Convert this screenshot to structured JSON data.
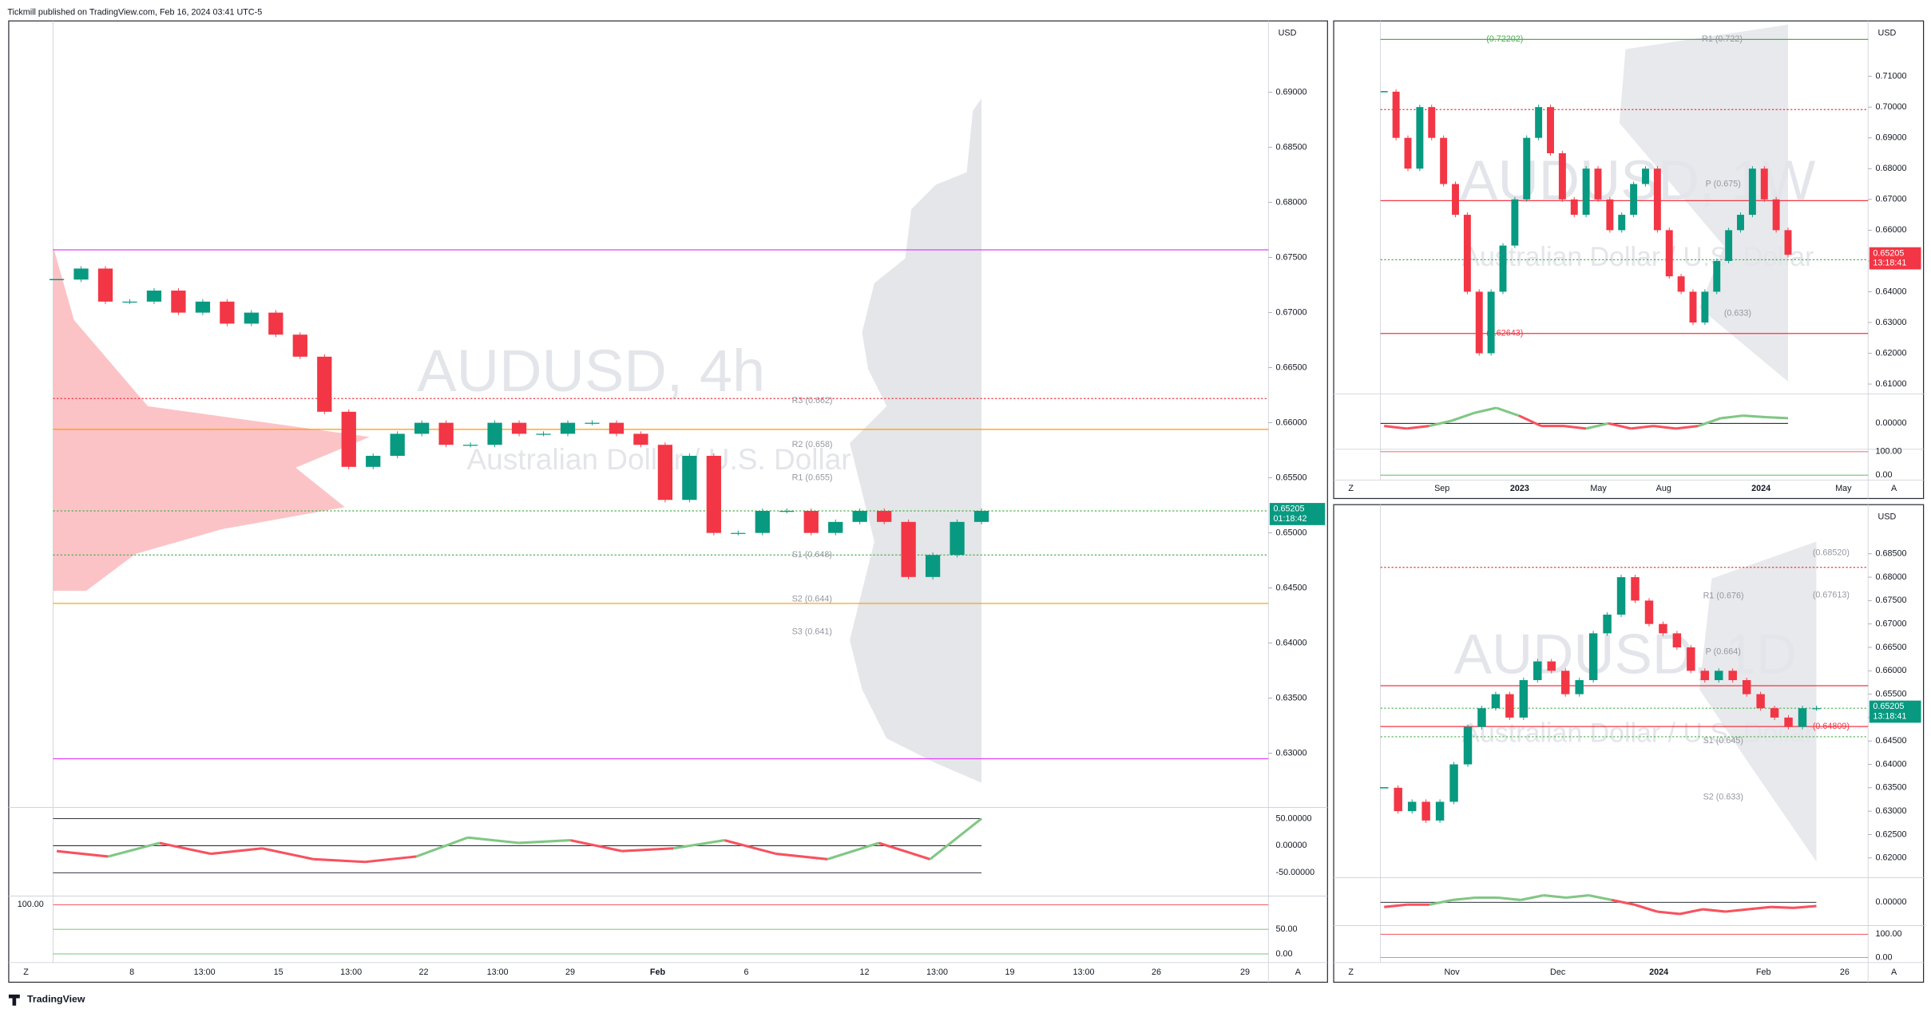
{
  "header": {
    "text": "Tickmill published on TradingView.com, Feb 16, 2024 03:41 UTC-5"
  },
  "footer": {
    "brand": "TradingView"
  },
  "chart_data": [
    {
      "type": "candlestick",
      "title": "AUDUSD, 4h",
      "subtitle": "Australian Dollar / U.S. Dollar",
      "currency": "USD",
      "x_labels": [
        "8",
        "13:00",
        "15",
        "13:00",
        "22",
        "13:00",
        "29",
        "Feb",
        "6",
        "12",
        "13:00",
        "19",
        "13:00",
        "26",
        "29"
      ],
      "values": [
        0.673,
        0.674,
        0.671,
        0.671,
        0.672,
        0.67,
        0.671,
        0.669,
        0.67,
        0.668,
        0.666,
        0.661,
        0.656,
        0.657,
        0.659,
        0.66,
        0.658,
        0.658,
        0.66,
        0.659,
        0.659,
        0.66,
        0.66,
        0.659,
        0.658,
        0.653,
        0.657,
        0.65,
        0.65,
        0.652,
        0.652,
        0.65,
        0.651,
        0.652,
        0.651,
        0.646,
        0.648,
        0.651,
        0.652
      ],
      "up_color": "#089981",
      "down_color": "#f23645",
      "ylim": [
        0.62508,
        0.69648
      ],
      "yticks": [
        {
          "value": 0.63,
          "label": "0.63000"
        },
        {
          "value": 0.635,
          "label": "0.63500"
        },
        {
          "value": 0.64,
          "label": "0.64000"
        },
        {
          "value": 0.645,
          "label": "0.64500"
        },
        {
          "value": 0.65,
          "label": "0.65000"
        },
        {
          "value": 0.655,
          "label": "0.65500"
        },
        {
          "value": 0.66,
          "label": "0.66000"
        },
        {
          "value": 0.665,
          "label": "0.66500"
        },
        {
          "value": 0.67,
          "label": "0.67000"
        },
        {
          "value": 0.675,
          "label": "0.67500"
        },
        {
          "value": 0.68,
          "label": "0.68000"
        },
        {
          "value": 0.685,
          "label": "0.68500"
        },
        {
          "value": 0.69,
          "label": "0.69000"
        }
      ],
      "price_label": 0.65205,
      "price_label_color": "#089981",
      "countdown": "01:18:42",
      "levels": [
        {
          "value": 0.6757,
          "color": "#e040fb",
          "style": "solid"
        },
        {
          "value": 0.6295,
          "color": "#e040fb",
          "style": "solid"
        },
        {
          "value": 0.6622,
          "color": "#f23645",
          "style": "dotted"
        },
        {
          "value": 0.6594,
          "color": "#ff9800",
          "style": "solid"
        },
        {
          "value": 0.652,
          "color": "#4caf50",
          "style": "dotted"
        },
        {
          "value": 0.648,
          "color": "#4caf50",
          "style": "dotted"
        },
        {
          "value": 0.6436,
          "color": "#ff9800",
          "style": "solid"
        }
      ],
      "annotations": [
        {
          "text": "R3 (0.662)",
          "value": 0.662,
          "color": "#9598a1"
        },
        {
          "text": "R2 (0.658)",
          "value": 0.658,
          "color": "#9598a1"
        },
        {
          "text": "R1 (0.655)",
          "value": 0.655,
          "color": "#9598a1"
        },
        {
          "text": "S1 (0.648)",
          "value": 0.648,
          "color": "#9598a1"
        },
        {
          "text": "S2 (0.644)",
          "value": 0.644,
          "color": "#9598a1"
        },
        {
          "text": "S3 (0.641)",
          "value": 0.641,
          "color": "#9598a1"
        }
      ],
      "oscillator": {
        "ylim": [
          -93,
          70.5
        ],
        "yticks": [
          {
            "value": 50,
            "label": "50.00000"
          },
          {
            "value": 0,
            "label": "0.00000"
          },
          {
            "value": -50,
            "label": "-50.00000"
          }
        ],
        "values": [
          -10,
          -20,
          5,
          -15,
          -5,
          -25,
          -30,
          -20,
          15,
          5,
          10,
          -10,
          -5,
          10,
          -15,
          -25,
          5,
          -25,
          50
        ]
      },
      "stochastic": {
        "ylim": [
          -17.5,
          117.5
        ],
        "yticks": [
          {
            "value": 100,
            "label": "100.00"
          },
          {
            "value": 50,
            "label": "50.00"
          },
          {
            "value": 0,
            "label": "0.00"
          }
        ]
      },
      "scale_buttons": [
        "Z",
        "A"
      ]
    },
    {
      "type": "candlestick",
      "title": "AUDUSD, 1W",
      "subtitle": "Australian Dollar / U.S. Dollar",
      "currency": "USD",
      "x_labels": [
        "Sep",
        "2023",
        "May",
        "Aug",
        "2024",
        "May"
      ],
      "values": [
        0.705,
        0.69,
        0.68,
        0.7,
        0.69,
        0.675,
        0.665,
        0.64,
        0.62,
        0.64,
        0.655,
        0.67,
        0.69,
        0.7,
        0.685,
        0.67,
        0.665,
        0.68,
        0.67,
        0.66,
        0.665,
        0.675,
        0.68,
        0.66,
        0.645,
        0.64,
        0.63,
        0.64,
        0.65,
        0.66,
        0.665,
        0.68,
        0.67,
        0.66,
        0.652
      ],
      "up_color": "#089981",
      "down_color": "#f23645",
      "ylim": [
        0.6068,
        0.728
      ],
      "yticks": [
        {
          "value": 0.61,
          "label": "0.61000"
        },
        {
          "value": 0.62,
          "label": "0.62000"
        },
        {
          "value": 0.63,
          "label": "0.63000"
        },
        {
          "value": 0.64,
          "label": "0.64000"
        },
        {
          "value": 0.65,
          "label": "0.65000"
        },
        {
          "value": 0.66,
          "label": "0.66000"
        },
        {
          "value": 0.67,
          "label": "0.67000"
        },
        {
          "value": 0.68,
          "label": "0.68000"
        },
        {
          "value": 0.69,
          "label": "0.69000"
        },
        {
          "value": 0.7,
          "label": "0.70000"
        },
        {
          "value": 0.71,
          "label": "0.71000"
        }
      ],
      "price_label": 0.65205,
      "price_label_color": "#f23645",
      "countdown": "13:18:41",
      "levels": [
        {
          "value": 0.722,
          "color": "#4caf50",
          "style": "solid"
        },
        {
          "value": 0.6992,
          "color": "#f23645",
          "style": "dotted"
        },
        {
          "value": 0.6696,
          "color": "#f23645",
          "style": "solid"
        },
        {
          "value": 0.6504,
          "color": "#4caf50",
          "style": "dotted"
        },
        {
          "value": 0.62643,
          "color": "#f23645",
          "style": "solid"
        }
      ],
      "annotations": [
        {
          "text": "(0.72202)",
          "value": 0.72202,
          "color": "#4caf50"
        },
        {
          "text": "R1 (0.722)",
          "value": 0.722,
          "color": "#9598a1"
        },
        {
          "text": "P (0.675)",
          "value": 0.675,
          "color": "#9598a1"
        },
        {
          "text": "(0.62643)",
          "value": 0.62643,
          "color": "#f23645"
        },
        {
          "text": "(0.633)",
          "value": 0.633,
          "color": "#9598a1"
        }
      ],
      "oscillator": {
        "ylim": [
          -50,
          57
        ],
        "yticks": [
          {
            "value": 0,
            "label": "0.00000"
          }
        ],
        "values": [
          -5,
          -10,
          -5,
          5,
          20,
          30,
          15,
          -5,
          -5,
          -10,
          0,
          -10,
          -5,
          -10,
          -5,
          10,
          15,
          12,
          10
        ]
      },
      "stochastic": {
        "ylim": [
          -21,
          110.5
        ],
        "yticks": [
          {
            "value": 100,
            "label": "100.00"
          },
          {
            "value": 0,
            "label": "0.00"
          }
        ]
      },
      "scale_buttons": [
        "Z",
        "A"
      ]
    },
    {
      "type": "candlestick",
      "title": "AUDUSD, 1D",
      "subtitle": "Australian Dollar / U.S. Dollar",
      "currency": "USD",
      "x_labels": [
        "Nov",
        "Dec",
        "2024",
        "Feb",
        "26"
      ],
      "values": [
        0.635,
        0.63,
        0.632,
        0.628,
        0.632,
        0.64,
        0.648,
        0.652,
        0.655,
        0.65,
        0.658,
        0.662,
        0.66,
        0.655,
        0.658,
        0.668,
        0.672,
        0.68,
        0.675,
        0.67,
        0.668,
        0.665,
        0.66,
        0.658,
        0.66,
        0.658,
        0.655,
        0.652,
        0.65,
        0.648,
        0.652,
        0.652
      ],
      "up_color": "#089981",
      "down_color": "#f23645",
      "ylim": [
        0.6158,
        0.6955
      ],
      "yticks": [
        {
          "value": 0.62,
          "label": "0.62000"
        },
        {
          "value": 0.625,
          "label": "0.62500"
        },
        {
          "value": 0.63,
          "label": "0.63000"
        },
        {
          "value": 0.635,
          "label": "0.63500"
        },
        {
          "value": 0.64,
          "label": "0.64000"
        },
        {
          "value": 0.645,
          "label": "0.64500"
        },
        {
          "value": 0.65,
          "label": "0.65000"
        },
        {
          "value": 0.655,
          "label": "0.65500"
        },
        {
          "value": 0.66,
          "label": "0.66000"
        },
        {
          "value": 0.665,
          "label": "0.66500"
        },
        {
          "value": 0.67,
          "label": "0.67000"
        },
        {
          "value": 0.675,
          "label": "0.67500"
        },
        {
          "value": 0.68,
          "label": "0.68000"
        },
        {
          "value": 0.685,
          "label": "0.68500"
        }
      ],
      "price_label": 0.65205,
      "price_label_color": "#089981",
      "countdown": "13:18:41",
      "levels": [
        {
          "value": 0.6821,
          "color": "#f23645",
          "style": "dotted"
        },
        {
          "value": 0.6568,
          "color": "#f23645",
          "style": "solid"
        },
        {
          "value": 0.652,
          "color": "#4caf50",
          "style": "dotted"
        },
        {
          "value": 0.64809,
          "color": "#f23645",
          "style": "solid"
        },
        {
          "value": 0.6459,
          "color": "#4caf50",
          "style": "dotted"
        }
      ],
      "annotations": [
        {
          "text": "(0.68520)",
          "value": 0.6852,
          "color": "#9598a1"
        },
        {
          "text": "(0.67613)",
          "value": 0.67613,
          "color": "#9598a1"
        },
        {
          "text": "R1 (0.676)",
          "value": 0.676,
          "color": "#9598a1"
        },
        {
          "text": "P (0.664)",
          "value": 0.664,
          "color": "#9598a1"
        },
        {
          "text": "(0.64809)",
          "value": 0.64809,
          "color": "#f23645"
        },
        {
          "text": "S1 (0.645)",
          "value": 0.645,
          "color": "#9598a1"
        },
        {
          "text": "S2 (0.633)",
          "value": 0.633,
          "color": "#9598a1"
        }
      ],
      "oscillator": {
        "ylim": [
          -50,
          53
        ],
        "yticks": [
          {
            "value": 0,
            "label": "0.00000"
          }
        ],
        "values": [
          -10,
          -5,
          -5,
          5,
          10,
          10,
          5,
          15,
          10,
          15,
          5,
          -5,
          -20,
          -25,
          -15,
          -20,
          -15,
          -10,
          -12,
          -8
        ]
      },
      "stochastic": {
        "ylim": [
          -21,
          136.8
        ],
        "yticks": [
          {
            "value": 100,
            "label": "100.00"
          },
          {
            "value": 0,
            "label": "0.00"
          }
        ]
      },
      "scale_buttons": [
        "Z",
        "A"
      ]
    }
  ]
}
